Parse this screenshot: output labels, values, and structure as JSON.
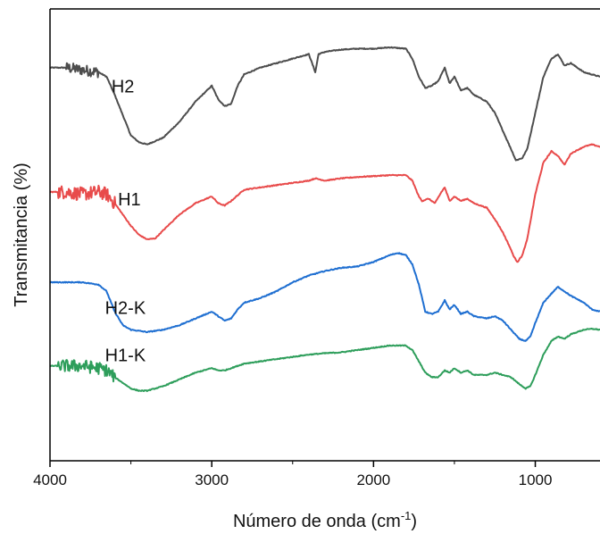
{
  "chart_data": {
    "type": "line",
    "xlabel": "Número de onda (cm",
    "xlabel_sup": "-1",
    "xlabel_tail": ")",
    "ylabel": "Transmitancia (%)",
    "xlim": [
      4000,
      600
    ],
    "x_reversed": true,
    "y_ticks_shown": false,
    "ylim": [
      0,
      10
    ],
    "grid": false,
    "xticks": [
      4000,
      3000,
      2000,
      1000
    ],
    "xtick_labels": [
      "4000",
      "3000",
      "2000",
      "1000"
    ],
    "series": [
      {
        "name": "H2",
        "color": "#4d4d4d",
        "noise_region": [
          3700,
          3900
        ],
        "noise_amp": 0.12,
        "points": [
          [
            4000,
            8.7
          ],
          [
            3900,
            8.7
          ],
          [
            3800,
            8.65
          ],
          [
            3700,
            8.6
          ],
          [
            3650,
            8.5
          ],
          [
            3600,
            8.1
          ],
          [
            3500,
            7.2
          ],
          [
            3450,
            7.05
          ],
          [
            3400,
            7.0
          ],
          [
            3300,
            7.15
          ],
          [
            3200,
            7.5
          ],
          [
            3100,
            7.95
          ],
          [
            3000,
            8.3
          ],
          [
            2960,
            8.0
          ],
          [
            2920,
            7.85
          ],
          [
            2880,
            7.9
          ],
          [
            2840,
            8.3
          ],
          [
            2800,
            8.55
          ],
          [
            2700,
            8.7
          ],
          [
            2600,
            8.8
          ],
          [
            2500,
            8.9
          ],
          [
            2400,
            9.0
          ],
          [
            2360,
            8.6
          ],
          [
            2340,
            9.0
          ],
          [
            2300,
            9.05
          ],
          [
            2200,
            9.1
          ],
          [
            2100,
            9.12
          ],
          [
            2000,
            9.12
          ],
          [
            1900,
            9.15
          ],
          [
            1800,
            9.12
          ],
          [
            1760,
            8.9
          ],
          [
            1720,
            8.5
          ],
          [
            1680,
            8.25
          ],
          [
            1640,
            8.3
          ],
          [
            1600,
            8.4
          ],
          [
            1560,
            8.7
          ],
          [
            1530,
            8.35
          ],
          [
            1500,
            8.5
          ],
          [
            1460,
            8.2
          ],
          [
            1420,
            8.25
          ],
          [
            1380,
            8.1
          ],
          [
            1300,
            7.95
          ],
          [
            1250,
            7.7
          ],
          [
            1200,
            7.3
          ],
          [
            1150,
            6.9
          ],
          [
            1120,
            6.65
          ],
          [
            1080,
            6.7
          ],
          [
            1050,
            6.9
          ],
          [
            1000,
            7.7
          ],
          [
            950,
            8.5
          ],
          [
            900,
            8.9
          ],
          [
            860,
            9.0
          ],
          [
            820,
            8.75
          ],
          [
            780,
            8.8
          ],
          [
            700,
            8.6
          ],
          [
            650,
            8.55
          ],
          [
            600,
            8.5
          ]
        ]
      },
      {
        "name": "H1",
        "color": "#e84b4b",
        "noise_region": [
          3600,
          3950
        ],
        "noise_amp": 0.15,
        "points": [
          [
            4000,
            5.95
          ],
          [
            3900,
            5.95
          ],
          [
            3800,
            5.9
          ],
          [
            3700,
            5.95
          ],
          [
            3650,
            5.9
          ],
          [
            3600,
            5.7
          ],
          [
            3500,
            5.2
          ],
          [
            3450,
            5.0
          ],
          [
            3400,
            4.9
          ],
          [
            3350,
            4.92
          ],
          [
            3300,
            5.1
          ],
          [
            3200,
            5.45
          ],
          [
            3100,
            5.7
          ],
          [
            3000,
            5.85
          ],
          [
            2960,
            5.7
          ],
          [
            2920,
            5.65
          ],
          [
            2880,
            5.75
          ],
          [
            2800,
            6.0
          ],
          [
            2700,
            6.05
          ],
          [
            2600,
            6.1
          ],
          [
            2500,
            6.15
          ],
          [
            2400,
            6.2
          ],
          [
            2360,
            6.25
          ],
          [
            2300,
            6.2
          ],
          [
            2200,
            6.25
          ],
          [
            2100,
            6.28
          ],
          [
            2000,
            6.3
          ],
          [
            1900,
            6.32
          ],
          [
            1800,
            6.32
          ],
          [
            1760,
            6.2
          ],
          [
            1720,
            5.85
          ],
          [
            1700,
            5.75
          ],
          [
            1660,
            5.8
          ],
          [
            1620,
            5.7
          ],
          [
            1580,
            5.95
          ],
          [
            1560,
            6.05
          ],
          [
            1530,
            5.75
          ],
          [
            1500,
            5.85
          ],
          [
            1460,
            5.75
          ],
          [
            1420,
            5.8
          ],
          [
            1380,
            5.7
          ],
          [
            1300,
            5.6
          ],
          [
            1250,
            5.35
          ],
          [
            1200,
            5.05
          ],
          [
            1160,
            4.75
          ],
          [
            1130,
            4.5
          ],
          [
            1110,
            4.4
          ],
          [
            1080,
            4.55
          ],
          [
            1050,
            4.9
          ],
          [
            1000,
            5.9
          ],
          [
            950,
            6.6
          ],
          [
            900,
            6.85
          ],
          [
            860,
            6.75
          ],
          [
            820,
            6.55
          ],
          [
            780,
            6.8
          ],
          [
            700,
            6.95
          ],
          [
            650,
            7.0
          ],
          [
            600,
            6.95
          ]
        ]
      },
      {
        "name": "H2-K",
        "color": "#1f6fd1",
        "noise_region": [
          0,
          0
        ],
        "noise_amp": 0,
        "points": [
          [
            4000,
            3.95
          ],
          [
            3900,
            3.95
          ],
          [
            3800,
            3.95
          ],
          [
            3700,
            3.9
          ],
          [
            3650,
            3.75
          ],
          [
            3600,
            3.3
          ],
          [
            3550,
            3.0
          ],
          [
            3500,
            2.9
          ],
          [
            3400,
            2.85
          ],
          [
            3300,
            2.9
          ],
          [
            3200,
            3.0
          ],
          [
            3100,
            3.15
          ],
          [
            3000,
            3.3
          ],
          [
            2960,
            3.2
          ],
          [
            2920,
            3.1
          ],
          [
            2880,
            3.15
          ],
          [
            2840,
            3.35
          ],
          [
            2800,
            3.5
          ],
          [
            2700,
            3.6
          ],
          [
            2600,
            3.75
          ],
          [
            2500,
            3.95
          ],
          [
            2400,
            4.1
          ],
          [
            2300,
            4.2
          ],
          [
            2200,
            4.27
          ],
          [
            2100,
            4.3
          ],
          [
            2000,
            4.4
          ],
          [
            1900,
            4.55
          ],
          [
            1850,
            4.6
          ],
          [
            1800,
            4.55
          ],
          [
            1760,
            4.35
          ],
          [
            1720,
            3.9
          ],
          [
            1680,
            3.3
          ],
          [
            1640,
            3.25
          ],
          [
            1600,
            3.3
          ],
          [
            1560,
            3.55
          ],
          [
            1530,
            3.35
          ],
          [
            1500,
            3.45
          ],
          [
            1460,
            3.25
          ],
          [
            1420,
            3.3
          ],
          [
            1380,
            3.2
          ],
          [
            1300,
            3.15
          ],
          [
            1250,
            3.2
          ],
          [
            1200,
            3.1
          ],
          [
            1150,
            2.9
          ],
          [
            1100,
            2.7
          ],
          [
            1060,
            2.65
          ],
          [
            1030,
            2.75
          ],
          [
            1000,
            3.05
          ],
          [
            950,
            3.5
          ],
          [
            900,
            3.7
          ],
          [
            860,
            3.85
          ],
          [
            820,
            3.75
          ],
          [
            780,
            3.65
          ],
          [
            700,
            3.5
          ],
          [
            650,
            3.35
          ],
          [
            600,
            3.3
          ]
        ]
      },
      {
        "name": "H1-K",
        "color": "#2e9e5b",
        "noise_region": [
          3600,
          3950
        ],
        "noise_amp": 0.14,
        "points": [
          [
            4000,
            2.1
          ],
          [
            3900,
            2.1
          ],
          [
            3800,
            2.1
          ],
          [
            3700,
            2.05
          ],
          [
            3650,
            2.0
          ],
          [
            3600,
            1.85
          ],
          [
            3500,
            1.6
          ],
          [
            3450,
            1.55
          ],
          [
            3400,
            1.55
          ],
          [
            3300,
            1.65
          ],
          [
            3200,
            1.8
          ],
          [
            3100,
            1.95
          ],
          [
            3000,
            2.05
          ],
          [
            2960,
            2.0
          ],
          [
            2920,
            2.0
          ],
          [
            2880,
            2.05
          ],
          [
            2800,
            2.15
          ],
          [
            2700,
            2.2
          ],
          [
            2600,
            2.25
          ],
          [
            2500,
            2.3
          ],
          [
            2400,
            2.35
          ],
          [
            2300,
            2.38
          ],
          [
            2200,
            2.4
          ],
          [
            2100,
            2.45
          ],
          [
            2000,
            2.5
          ],
          [
            1900,
            2.55
          ],
          [
            1800,
            2.55
          ],
          [
            1760,
            2.45
          ],
          [
            1720,
            2.2
          ],
          [
            1680,
            1.95
          ],
          [
            1640,
            1.85
          ],
          [
            1600,
            1.85
          ],
          [
            1560,
            2.0
          ],
          [
            1530,
            1.95
          ],
          [
            1500,
            2.05
          ],
          [
            1460,
            1.95
          ],
          [
            1420,
            2.0
          ],
          [
            1380,
            1.9
          ],
          [
            1300,
            1.9
          ],
          [
            1250,
            1.95
          ],
          [
            1200,
            1.9
          ],
          [
            1150,
            1.85
          ],
          [
            1100,
            1.7
          ],
          [
            1060,
            1.6
          ],
          [
            1030,
            1.65
          ],
          [
            1000,
            1.9
          ],
          [
            950,
            2.35
          ],
          [
            900,
            2.65
          ],
          [
            860,
            2.75
          ],
          [
            820,
            2.7
          ],
          [
            780,
            2.8
          ],
          [
            700,
            2.9
          ],
          [
            650,
            2.92
          ],
          [
            600,
            2.9
          ]
        ]
      }
    ],
    "series_labels": [
      {
        "text": "H2",
        "x": 3620,
        "y": 8.15
      },
      {
        "text": "H1",
        "x": 3580,
        "y": 5.65
      },
      {
        "text": "H2-K",
        "x": 3660,
        "y": 3.25
      },
      {
        "text": "H1-K",
        "x": 3660,
        "y": 2.2
      }
    ]
  }
}
